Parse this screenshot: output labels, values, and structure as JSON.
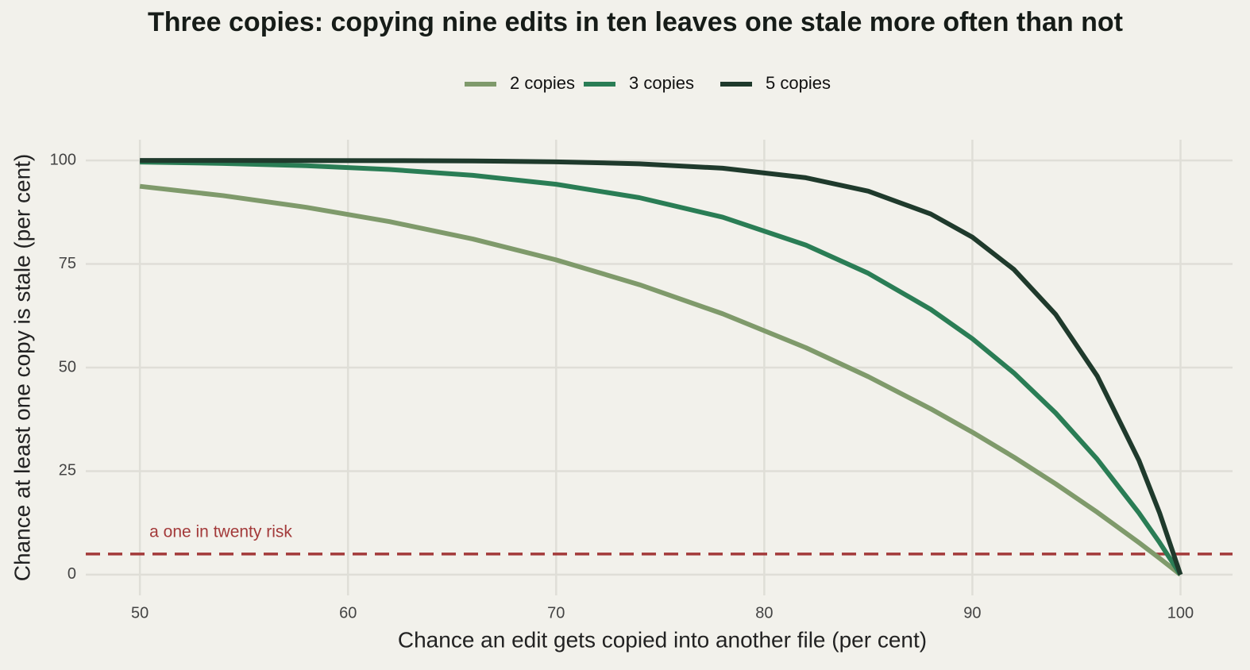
{
  "chart_data": {
    "type": "line",
    "title": "Three copies: copying nine edits in ten leaves one stale more often than not",
    "x_label": "Chance an edit gets copied into another file (per cent)",
    "y_label": "Chance at least one copy is stale (per cent)",
    "x": [
      50,
      54,
      58,
      62,
      66,
      70,
      74,
      78,
      82,
      85,
      88,
      90,
      92,
      94,
      96,
      98,
      99,
      100
    ],
    "series": [
      {
        "name": "2 copies",
        "color": "#7f9a6b",
        "values": [
          93.75,
          91.5,
          88.68,
          85.22,
          81.03,
          75.99,
          70.01,
          62.98,
          54.79,
          47.8,
          40.03,
          34.39,
          28.36,
          21.93,
          15.07,
          7.76,
          3.94,
          0
        ]
      },
      {
        "name": "3 copies",
        "color": "#2a7d55",
        "values": [
          99.61,
          99.28,
          98.72,
          97.82,
          96.4,
          94.24,
          91.01,
          86.3,
          79.56,
          72.75,
          64.04,
          56.95,
          48.68,
          39.04,
          27.86,
          14.92,
          7.73,
          0
        ]
      },
      {
        "name": "5 copies",
        "color": "#1f3a2c",
        "values": [
          100.0,
          99.99,
          99.98,
          99.95,
          99.87,
          99.67,
          99.19,
          98.12,
          95.82,
          92.57,
          87.07,
          81.47,
          73.66,
          62.84,
          47.96,
          27.62,
          14.85,
          0
        ]
      }
    ],
    "reference_line": {
      "value": 5,
      "label": "a one in twenty risk",
      "color": "#a33a3a"
    },
    "xlim": [
      47.4,
      102.5
    ],
    "ylim": [
      -5,
      105
    ],
    "xticks": [
      50,
      60,
      70,
      80,
      90,
      100
    ],
    "yticks": [
      0,
      25,
      50,
      75,
      100
    ],
    "grid": true,
    "legend": "top"
  }
}
